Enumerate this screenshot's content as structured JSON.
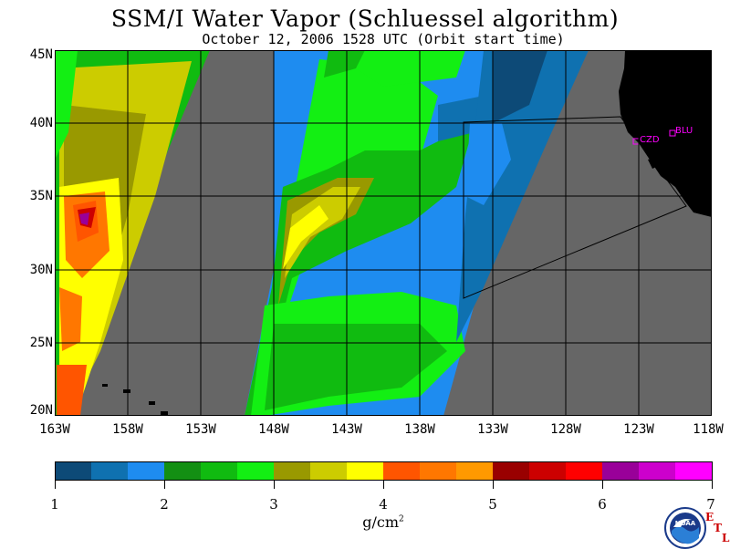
{
  "title": "SSM/I Water Vapor (Schluessel algorithm)",
  "subtitle": "October 12, 2006  1528 UTC  (Orbit start time)",
  "map": {
    "lat_labels": [
      "45N",
      "40N",
      "35N",
      "30N",
      "25N",
      "20N"
    ],
    "lon_labels": [
      "163W",
      "158W",
      "153W",
      "148W",
      "143W",
      "138W",
      "133W",
      "128W",
      "123W",
      "118W"
    ],
    "stations": [
      {
        "code": "CZD"
      },
      {
        "code": "BLU"
      }
    ],
    "colors": {
      "no_data": "#666666",
      "land": "#000000",
      "station": "#ff00ff"
    }
  },
  "colorbar": {
    "ticks": [
      "1",
      "2",
      "3",
      "4",
      "5",
      "6",
      "7"
    ],
    "units_base": "g/cm",
    "units_exp": "2",
    "colors": [
      "#0d4a77",
      "#0f71b0",
      "#1e8cf0",
      "#138f13",
      "#10bb10",
      "#13ef13",
      "#999900",
      "#cccc00",
      "#ffff00",
      "#ff5500",
      "#ff7700",
      "#ff9900",
      "#990000",
      "#cc0000",
      "#ff0000",
      "#990099",
      "#cc00cc",
      "#ff00ff"
    ]
  },
  "logo": {
    "text": "NOAA",
    "lab_letters": [
      "E",
      "T",
      "L"
    ]
  }
}
